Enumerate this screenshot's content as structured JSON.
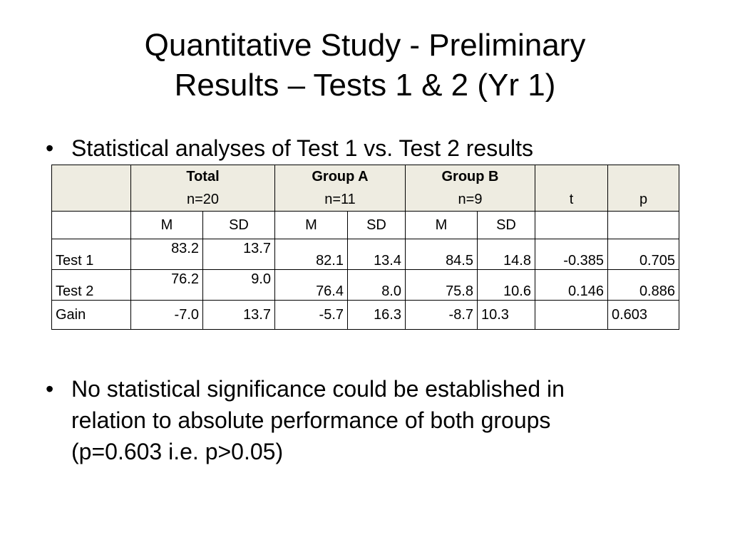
{
  "slide": {
    "title_line1": "Quantitative Study - Preliminary",
    "title_line2": "Results – Tests 1 & 2 (Yr 1)",
    "bullet_char": "•",
    "bullet1": "Statistical analyses of Test 1 vs. Test 2 results",
    "bullet2_lines": [
      "No statistical significance could be established in",
      "relation to absolute performance of both groups",
      "(p=0.603 i.e. p>0.05)"
    ]
  },
  "table": {
    "groups": [
      {
        "name": "Total",
        "n": "n=20"
      },
      {
        "name": "Group A",
        "n": "n=11"
      },
      {
        "name": "Group B",
        "n": "n=9"
      }
    ],
    "t_label": "t",
    "p_label": "p",
    "sub_headers": [
      "M",
      "SD",
      "M",
      "SD",
      "M",
      "SD"
    ],
    "rows": [
      {
        "label": "Test 1",
        "cells": [
          "83.2",
          "13.7",
          "82.1",
          "13.4",
          "84.5",
          "14.8",
          "-0.385",
          "0.705"
        ]
      },
      {
        "label": "Test 2",
        "cells": [
          "76.2",
          "9.0",
          "76.4",
          "8.0",
          "75.8",
          "10.6",
          "0.146",
          "0.886"
        ]
      },
      {
        "label": "Gain",
        "cells": [
          "-7.0",
          "13.7",
          "-5.7",
          "16.3",
          "-8.7",
          "10.3",
          "",
          "0.603"
        ]
      }
    ]
  }
}
